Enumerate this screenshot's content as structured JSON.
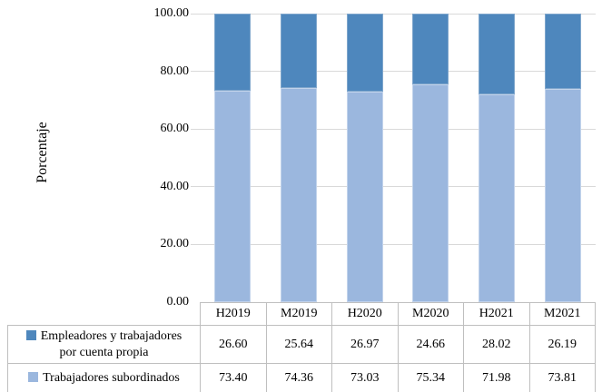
{
  "chart_data": {
    "type": "bar",
    "stacked": true,
    "orientation": "vertical",
    "title": "",
    "xlabel": "",
    "ylabel": "Porcentaje",
    "ylim": [
      0,
      100
    ],
    "yticks": [
      0,
      20,
      40,
      60,
      80,
      100
    ],
    "ytick_labels": [
      "0.00",
      "20.00",
      "40.00",
      "60.00",
      "80.00",
      "100.00"
    ],
    "grid": true,
    "legend_position": "table-left",
    "categories": [
      "H2019",
      "M2019",
      "H2020",
      "M2020",
      "H2021",
      "M2021"
    ],
    "series": [
      {
        "name": "Empleadores y trabajadores por cuenta propia",
        "name_lines": [
          "Empleadores y trabajadores",
          "por cuenta propia"
        ],
        "color": "#4E87BD",
        "values": [
          26.6,
          25.64,
          26.97,
          24.66,
          28.02,
          26.19
        ],
        "display": [
          "26.60",
          "25.64",
          "26.97",
          "24.66",
          "28.02",
          "26.19"
        ]
      },
      {
        "name": "Trabajadores subordinados",
        "name_lines": [
          "Trabajadores subordinados"
        ],
        "color": "#9BB7DE",
        "values": [
          73.4,
          74.36,
          73.03,
          75.34,
          71.98,
          73.81
        ],
        "display": [
          "73.40",
          "74.36",
          "73.03",
          "75.34",
          "71.98",
          "73.81"
        ]
      }
    ],
    "stack_order_bottom_to_top": [
      "Trabajadores subordinados",
      "Empleadores y trabajadores por cuenta propia"
    ],
    "colors": {
      "grid": "#D9D9D9",
      "table_border": "#BFBFBF",
      "text": "#000000",
      "background": "#FFFFFF"
    }
  }
}
